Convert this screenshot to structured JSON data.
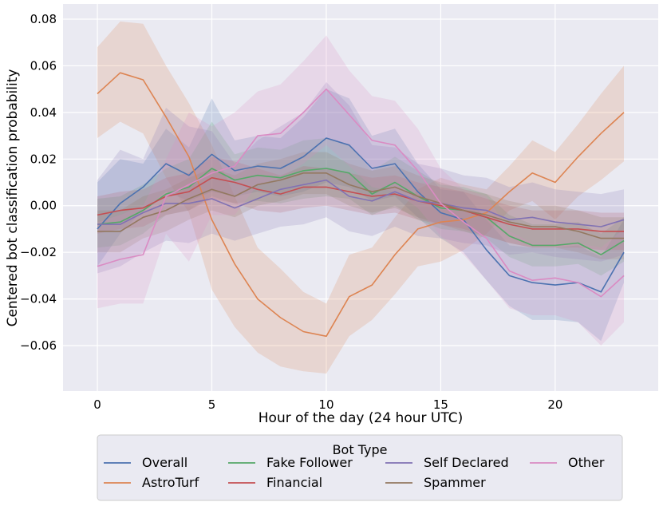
{
  "chart_data": {
    "type": "line",
    "title": "",
    "xlabel": "Hour of the day (24 hour UTC)",
    "ylabel": "Centered bot classification probability",
    "xlim": [
      -1.5,
      24.5
    ],
    "ylim": [
      -0.0795,
      0.0865
    ],
    "xticks": [
      0,
      5,
      10,
      15,
      20
    ],
    "xtick_labels": [
      "0",
      "5",
      "10",
      "15",
      "20"
    ],
    "yticks": [
      -0.06,
      -0.04,
      -0.02,
      0.0,
      0.02,
      0.04,
      0.06,
      0.08
    ],
    "ytick_labels": [
      "−0.06",
      "−0.04",
      "−0.02",
      "0.00",
      "0.02",
      "0.04",
      "0.06",
      "0.08"
    ],
    "grid": true,
    "x": [
      0,
      1,
      2,
      3,
      4,
      5,
      6,
      7,
      8,
      9,
      10,
      11,
      12,
      13,
      14,
      15,
      16,
      17,
      18,
      19,
      20,
      21,
      22,
      23
    ],
    "legend": {
      "title": "Bot Type",
      "position": "below",
      "columns": 4
    },
    "series": [
      {
        "name": "Overall",
        "color": "#4c72b0",
        "values": [
          -0.01,
          0.001,
          0.008,
          0.018,
          0.013,
          0.022,
          0.015,
          0.017,
          0.016,
          0.021,
          0.029,
          0.026,
          0.016,
          0.018,
          0.006,
          -0.003,
          -0.006,
          -0.019,
          -0.03,
          -0.033,
          -0.034,
          -0.033,
          -0.037,
          -0.02
        ],
        "lower": [
          -0.026,
          -0.012,
          -0.002,
          0.006,
          0.002,
          0.006,
          0.004,
          0.006,
          0.004,
          0.006,
          0.01,
          0.008,
          0.002,
          0.004,
          -0.005,
          -0.014,
          -0.02,
          -0.032,
          -0.043,
          -0.049,
          -0.049,
          -0.05,
          -0.058,
          -0.033
        ],
        "upper": [
          0.01,
          0.02,
          0.018,
          0.033,
          0.025,
          0.046,
          0.028,
          0.03,
          0.029,
          0.038,
          0.05,
          0.046,
          0.03,
          0.033,
          0.018,
          0.007,
          0.006,
          -0.006,
          -0.017,
          -0.018,
          -0.018,
          -0.017,
          -0.022,
          -0.006
        ]
      },
      {
        "name": "AstroTurf",
        "color": "#dd8452",
        "values": [
          0.048,
          0.057,
          0.054,
          0.038,
          0.021,
          -0.006,
          -0.025,
          -0.04,
          -0.048,
          -0.054,
          -0.056,
          -0.039,
          -0.034,
          -0.021,
          -0.01,
          -0.007,
          -0.006,
          -0.003,
          0.006,
          0.014,
          0.01,
          0.021,
          0.031,
          0.04
        ],
        "lower": [
          0.029,
          0.036,
          0.031,
          0.012,
          -0.003,
          -0.036,
          -0.052,
          -0.063,
          -0.069,
          -0.071,
          -0.072,
          -0.056,
          -0.049,
          -0.038,
          -0.026,
          -0.024,
          -0.019,
          -0.012,
          -0.002,
          0.002,
          -0.006,
          0.004,
          0.011,
          0.019
        ],
        "upper": [
          0.068,
          0.079,
          0.078,
          0.06,
          0.044,
          0.026,
          0.004,
          -0.018,
          -0.027,
          -0.037,
          -0.042,
          -0.021,
          -0.018,
          -0.005,
          0.007,
          0.012,
          0.009,
          0.007,
          0.017,
          0.028,
          0.023,
          0.035,
          0.048,
          0.06
        ]
      },
      {
        "name": "Fake Follower",
        "color": "#55a868",
        "values": [
          -0.008,
          -0.007,
          -0.002,
          0.005,
          0.008,
          0.016,
          0.011,
          0.013,
          0.012,
          0.015,
          0.016,
          0.014,
          0.005,
          0.01,
          0.004,
          -0.001,
          -0.002,
          -0.005,
          -0.013,
          -0.017,
          -0.017,
          -0.016,
          -0.021,
          -0.015
        ],
        "lower": [
          -0.018,
          -0.017,
          -0.012,
          -0.004,
          -0.002,
          0.004,
          0.001,
          0.002,
          0.001,
          0.003,
          0.004,
          0.003,
          -0.004,
          0.0,
          -0.006,
          -0.01,
          -0.011,
          -0.014,
          -0.022,
          -0.026,
          -0.026,
          -0.025,
          -0.03,
          -0.024
        ],
        "upper": [
          0.003,
          0.004,
          0.009,
          0.016,
          0.02,
          0.036,
          0.022,
          0.025,
          0.024,
          0.028,
          0.029,
          0.026,
          0.015,
          0.021,
          0.015,
          0.009,
          0.008,
          0.005,
          -0.004,
          -0.008,
          -0.008,
          -0.007,
          -0.012,
          -0.005
        ]
      },
      {
        "name": "Financial",
        "color": "#c44e52",
        "values": [
          -0.004,
          -0.002,
          -0.001,
          0.004,
          0.006,
          0.012,
          0.01,
          0.007,
          0.005,
          0.008,
          0.008,
          0.006,
          0.004,
          0.005,
          0.002,
          0.0,
          -0.002,
          -0.005,
          -0.008,
          -0.01,
          -0.01,
          -0.01,
          -0.011,
          -0.011
        ],
        "lower": [
          -0.012,
          -0.01,
          -0.009,
          -0.004,
          -0.002,
          0.003,
          0.001,
          -0.002,
          -0.003,
          -0.001,
          0.0,
          -0.002,
          -0.004,
          -0.003,
          -0.006,
          -0.008,
          -0.01,
          -0.013,
          -0.016,
          -0.018,
          -0.018,
          -0.018,
          -0.019,
          -0.019
        ],
        "upper": [
          0.004,
          0.006,
          0.007,
          0.012,
          0.014,
          0.021,
          0.019,
          0.016,
          0.013,
          0.017,
          0.016,
          0.014,
          0.012,
          0.013,
          0.01,
          0.008,
          0.006,
          0.003,
          0.0,
          -0.002,
          -0.002,
          -0.002,
          -0.003,
          -0.003
        ]
      },
      {
        "name": "Self Declared",
        "color": "#8172b3",
        "values": [
          -0.008,
          -0.008,
          -0.003,
          0.001,
          0.001,
          0.003,
          -0.001,
          0.003,
          0.007,
          0.009,
          0.011,
          0.004,
          0.002,
          0.006,
          0.002,
          0.001,
          -0.001,
          -0.002,
          -0.006,
          -0.005,
          -0.007,
          -0.008,
          -0.009,
          -0.006
        ],
        "lower": [
          -0.029,
          -0.026,
          -0.02,
          -0.015,
          -0.016,
          -0.012,
          -0.015,
          -0.012,
          -0.009,
          -0.008,
          -0.005,
          -0.011,
          -0.013,
          -0.009,
          -0.013,
          -0.014,
          -0.016,
          -0.017,
          -0.021,
          -0.02,
          -0.022,
          -0.023,
          -0.024,
          -0.021
        ],
        "upper": [
          0.011,
          0.024,
          0.02,
          0.042,
          0.034,
          0.032,
          0.018,
          0.028,
          0.034,
          0.04,
          0.053,
          0.043,
          0.026,
          0.025,
          0.018,
          0.016,
          0.013,
          0.012,
          0.008,
          0.01,
          0.007,
          0.006,
          0.005,
          0.007
        ]
      },
      {
        "name": "Spammer",
        "color": "#937860",
        "values": [
          -0.011,
          -0.011,
          -0.005,
          -0.002,
          0.003,
          0.007,
          0.004,
          0.009,
          0.011,
          0.014,
          0.014,
          0.009,
          0.006,
          0.008,
          0.004,
          0.001,
          -0.002,
          -0.004,
          -0.007,
          -0.009,
          -0.009,
          -0.011,
          -0.014,
          -0.014
        ],
        "lower": [
          -0.02,
          -0.02,
          -0.014,
          -0.011,
          -0.006,
          -0.002,
          -0.005,
          0.0,
          0.002,
          0.005,
          0.005,
          0.0,
          -0.003,
          -0.001,
          -0.005,
          -0.008,
          -0.011,
          -0.013,
          -0.016,
          -0.018,
          -0.018,
          -0.02,
          -0.023,
          -0.023
        ],
        "upper": [
          -0.002,
          -0.002,
          0.004,
          0.007,
          0.012,
          0.016,
          0.013,
          0.018,
          0.02,
          0.023,
          0.023,
          0.018,
          0.015,
          0.017,
          0.013,
          0.01,
          0.007,
          0.005,
          0.002,
          0.0,
          0.0,
          -0.002,
          -0.005,
          -0.005
        ]
      },
      {
        "name": "Other",
        "color": "#da8bc3",
        "values": [
          -0.026,
          -0.023,
          -0.021,
          0.004,
          0.009,
          0.014,
          0.017,
          0.03,
          0.031,
          0.04,
          0.05,
          0.039,
          0.028,
          0.026,
          0.015,
          0.001,
          -0.007,
          -0.014,
          -0.028,
          -0.032,
          -0.031,
          -0.033,
          -0.039,
          -0.03
        ],
        "lower": [
          -0.044,
          -0.042,
          -0.042,
          -0.012,
          -0.024,
          -0.004,
          -0.004,
          0.009,
          0.012,
          0.018,
          0.026,
          0.017,
          0.008,
          0.006,
          -0.001,
          -0.013,
          -0.021,
          -0.032,
          -0.044,
          -0.047,
          -0.047,
          -0.05,
          -0.06,
          -0.05
        ],
        "upper": [
          -0.007,
          -0.004,
          0.0,
          0.02,
          0.04,
          0.034,
          0.04,
          0.049,
          0.052,
          0.062,
          0.073,
          0.058,
          0.047,
          0.045,
          0.033,
          0.016,
          0.007,
          0.004,
          -0.011,
          -0.016,
          -0.016,
          -0.016,
          -0.018,
          -0.01
        ]
      }
    ]
  }
}
